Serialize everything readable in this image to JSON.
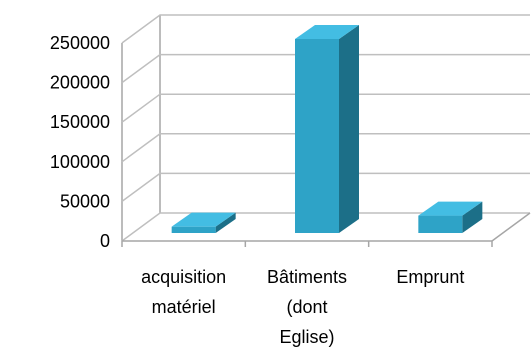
{
  "chart_data": {
    "type": "bar",
    "style": "3d-column",
    "categories": [
      [
        "acquisition",
        "matériel"
      ],
      [
        "Bâtiments",
        "(dont",
        "Eglise)"
      ],
      [
        "Emprunt"
      ]
    ],
    "values": [
      8000,
      245000,
      22000
    ],
    "yticks": [
      "0",
      "50000",
      "100000",
      "150000",
      "200000",
      "250000"
    ],
    "ylim": [
      0,
      250000
    ],
    "grid": true,
    "bar_color": "#2ea3c7",
    "bar_side_color": "#1c6f88",
    "bar_top_color": "#43bde3"
  }
}
